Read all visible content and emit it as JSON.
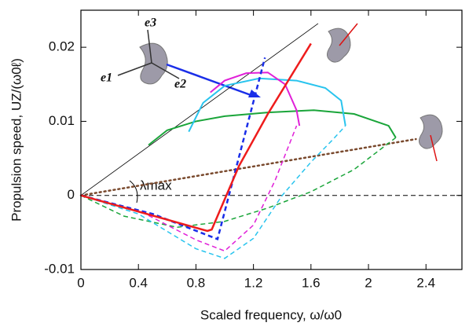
{
  "chart_data": {
    "type": "line",
    "x_label": "Scaled frequency, ω/ω0",
    "y_label": "Propulsion speed, UZ/(ω0ℓ)",
    "annotations": {
      "lambda": "λmax",
      "e1": "e1",
      "e2": "e2",
      "e3": "e3"
    },
    "xlim": [
      0,
      2.65
    ],
    "ylim": [
      -0.01,
      0.025
    ],
    "xticks": [
      0,
      0.4,
      0.8,
      1.2,
      1.6,
      2,
      2.4
    ],
    "yticks": [
      -0.01,
      0,
      0.01,
      0.02
    ],
    "grid": false,
    "series": [
      {
        "color": "#000000",
        "dash": "solid",
        "width": 0.8,
        "x": [
          0,
          1.65
        ],
        "values": [
          0,
          0.0232
        ]
      },
      {
        "color": "#000000",
        "dash": "dashed",
        "width": 1,
        "x": [
          0,
          2.65
        ],
        "values": [
          0,
          0
        ]
      },
      {
        "color": "#7a4a2e",
        "dash": "dotted",
        "width": 2.5,
        "x": [
          0,
          2.33
        ],
        "values": [
          0,
          0.0076
        ]
      },
      {
        "color": "#1aa53a",
        "dash": "solid",
        "width": 2,
        "x": [
          0.47,
          0.6,
          0.8,
          1.0,
          1.3,
          1.62,
          1.9,
          2.14,
          2.19
        ],
        "values": [
          0.0068,
          0.0088,
          0.01,
          0.0107,
          0.0112,
          0.0115,
          0.011,
          0.0094,
          0.0078
        ]
      },
      {
        "color": "#1aa53a",
        "dash": "dashed",
        "width": 1.5,
        "x": [
          0,
          0.3,
          0.67,
          1.0,
          1.3,
          1.6,
          1.9,
          2.19
        ],
        "values": [
          0,
          -0.0028,
          -0.0043,
          -0.0035,
          -0.0017,
          0.0005,
          0.0035,
          0.0078
        ]
      },
      {
        "color": "#29c4ee",
        "dash": "solid",
        "width": 2,
        "x": [
          0.75,
          0.85,
          1.0,
          1.24,
          1.5,
          1.7,
          1.81,
          1.84
        ],
        "values": [
          0.0086,
          0.0125,
          0.0148,
          0.0158,
          0.0155,
          0.0145,
          0.0128,
          0.0094
        ]
      },
      {
        "color": "#29c4ee",
        "dash": "dashed",
        "width": 1.5,
        "x": [
          0,
          0.4,
          0.8,
          1.0,
          1.2,
          1.4,
          1.6,
          1.75,
          1.84
        ],
        "values": [
          0,
          -0.0025,
          -0.0072,
          -0.0085,
          -0.0058,
          0,
          0.0045,
          0.0075,
          0.0094
        ]
      },
      {
        "color": "#e020d8",
        "dash": "solid",
        "width": 2,
        "x": [
          0.9,
          1.0,
          1.15,
          1.3,
          1.42,
          1.5,
          1.52
        ],
        "values": [
          0.0139,
          0.0155,
          0.0165,
          0.0166,
          0.015,
          0.0115,
          0.0094
        ]
      },
      {
        "color": "#e020d8",
        "dash": "dashed",
        "width": 1.5,
        "x": [
          0,
          0.4,
          0.8,
          1.0,
          1.2,
          1.35,
          1.5
        ],
        "values": [
          0,
          -0.002,
          -0.006,
          -0.0075,
          -0.004,
          0.002,
          0.0094
        ]
      },
      {
        "color": "#1a2ee8",
        "dash": "dashed",
        "width": 2.5,
        "x": [
          0,
          0.5,
          0.95,
          1.28
        ],
        "values": [
          0,
          -0.0025,
          -0.0059,
          0.0186
        ]
      },
      {
        "color": "#ee1c1c",
        "dash": "solid",
        "width": 2.5,
        "x": [
          0,
          0.88,
          0.91,
          1.1,
          1.3,
          1.6
        ],
        "values": [
          0,
          -0.0048,
          -0.0046,
          0.004,
          0.011,
          0.0205
        ]
      }
    ]
  }
}
